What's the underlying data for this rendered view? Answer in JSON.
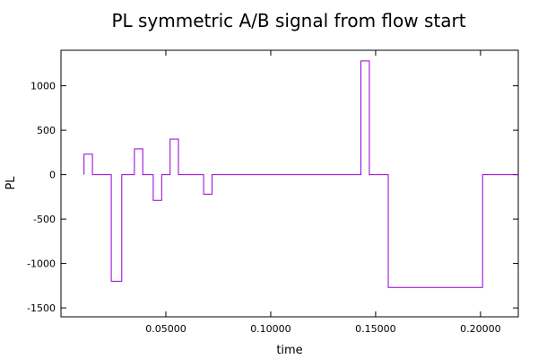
{
  "chart_data": {
    "type": "line",
    "title": "PL symmetric A/B signal from flow start",
    "xlabel": "time",
    "ylabel": "PL",
    "xlim": [
      0.0,
      0.218
    ],
    "ylim": [
      -1600,
      1400
    ],
    "x_ticks": [
      0.05,
      0.1,
      0.15,
      0.2
    ],
    "x_tick_labels": [
      "0.05000",
      "0.10000",
      "0.15000",
      "0.20000"
    ],
    "y_ticks": [
      1000,
      500,
      0,
      -500,
      -1000,
      -1500
    ],
    "y_tick_labels": [
      "1000",
      "500",
      "0",
      "-500",
      "-1000",
      "-1500"
    ],
    "grid": false,
    "legend": false,
    "line_color": "#9400d3",
    "series": [
      {
        "step": true,
        "x": [
          0.011,
          0.011,
          0.015,
          0.015,
          0.024,
          0.024,
          0.029,
          0.029,
          0.035,
          0.035,
          0.039,
          0.039,
          0.044,
          0.044,
          0.048,
          0.048,
          0.052,
          0.052,
          0.056,
          0.056,
          0.068,
          0.068,
          0.072,
          0.072,
          0.143,
          0.143,
          0.147,
          0.147,
          0.156,
          0.156,
          0.201,
          0.201,
          0.218
        ],
        "y": [
          0,
          230,
          230,
          0,
          0,
          -1200,
          -1200,
          0,
          0,
          290,
          290,
          0,
          0,
          -290,
          -290,
          0,
          0,
          400,
          400,
          0,
          0,
          -220,
          -220,
          0,
          0,
          1280,
          1280,
          0,
          0,
          -1270,
          -1270,
          0,
          0
        ]
      }
    ]
  }
}
